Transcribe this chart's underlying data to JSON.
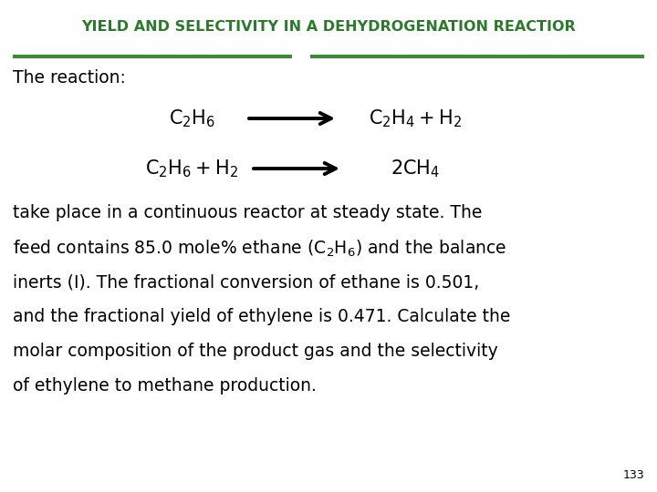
{
  "title": "YIELD AND SELECTIVITY IN A DEHYDROGENATION REACTIOR",
  "title_color": "#2d7a2d",
  "title_fontsize": 11.5,
  "line_color": "#3a8a3a",
  "bg_color": "#ffffff",
  "page_number": "133",
  "body_fontsize": 13.5,
  "reaction_fontsize": 15,
  "reaction_label": "The reaction:",
  "page_num_fontsize": 9
}
